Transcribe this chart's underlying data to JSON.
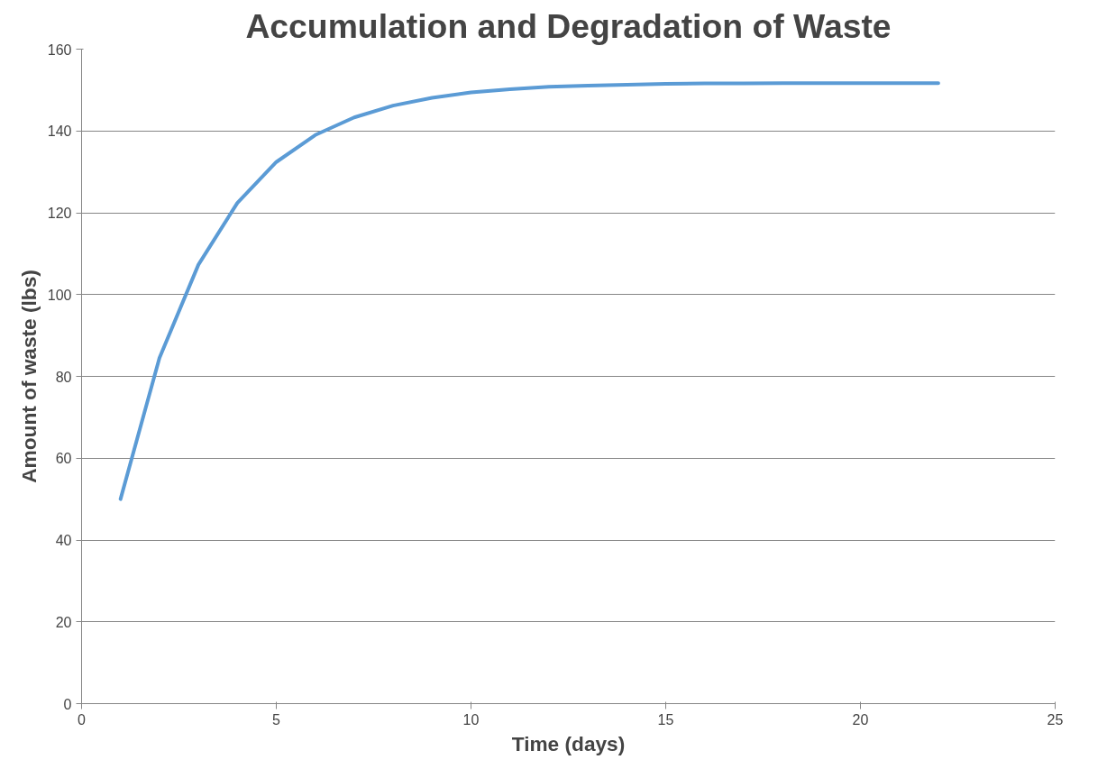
{
  "chart_data": {
    "type": "line",
    "title": "Accumulation and Degradation of Waste",
    "xlabel": "Time (days)",
    "ylabel": "Amount of waste (lbs)",
    "x": [
      1,
      2,
      3,
      4,
      5,
      6,
      7,
      8,
      9,
      10,
      11,
      12,
      13,
      14,
      15,
      16,
      17,
      18,
      19,
      20,
      21,
      22
    ],
    "series": [
      {
        "color": "#5b9bd5",
        "values": [
          50,
          84.5,
          107.3,
          122.4,
          132.4,
          139.0,
          143.3,
          146.2,
          148.1,
          149.4,
          150.2,
          150.8,
          151.1,
          151.3,
          151.5,
          151.6,
          151.6,
          151.7,
          151.7,
          151.7,
          151.7,
          151.7
        ]
      }
    ],
    "xlim": [
      0,
      25
    ],
    "xticks": [
      0,
      5,
      10,
      15,
      20,
      25
    ],
    "ylim": [
      0,
      160
    ],
    "yticks": [
      0,
      20,
      40,
      60,
      80,
      100,
      120,
      140,
      160
    ],
    "grid": "y",
    "marker": "none",
    "line_style": "solid"
  }
}
